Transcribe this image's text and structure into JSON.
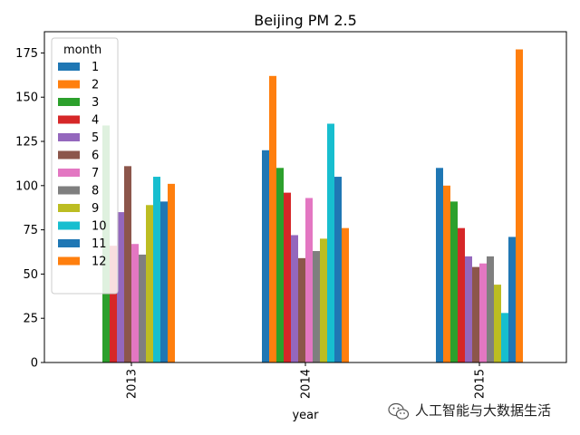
{
  "chart_data": {
    "type": "bar",
    "title": "Beijing PM 2.5",
    "xlabel": "year",
    "ylabel": "",
    "categories": [
      "2013",
      "2014",
      "2015"
    ],
    "ylim": [
      0,
      187
    ],
    "yticks": [
      0,
      25,
      50,
      75,
      100,
      125,
      150,
      175
    ],
    "grid": false,
    "legend": {
      "title": "month",
      "position": "upper-left"
    },
    "series": [
      {
        "name": "1",
        "color": "#1f77b4",
        "values": [
          null,
          120,
          110
        ]
      },
      {
        "name": "2",
        "color": "#ff7f0e",
        "values": [
          null,
          162,
          100
        ]
      },
      {
        "name": "3",
        "color": "#2ca02c",
        "values": [
          134,
          110,
          91
        ]
      },
      {
        "name": "4",
        "color": "#d62728",
        "values": [
          66,
          96,
          76
        ]
      },
      {
        "name": "5",
        "color": "#9467bd",
        "values": [
          85,
          72,
          60
        ]
      },
      {
        "name": "6",
        "color": "#8c564b",
        "values": [
          111,
          59,
          54
        ]
      },
      {
        "name": "7",
        "color": "#e377c2",
        "values": [
          67,
          93,
          56
        ]
      },
      {
        "name": "8",
        "color": "#7f7f7f",
        "values": [
          61,
          63,
          60
        ]
      },
      {
        "name": "9",
        "color": "#bcbd22",
        "values": [
          89,
          70,
          44
        ]
      },
      {
        "name": "10",
        "color": "#17becf",
        "values": [
          105,
          135,
          28
        ]
      },
      {
        "name": "11",
        "color": "#1f77b4",
        "values": [
          91,
          105,
          71
        ]
      },
      {
        "name": "12",
        "color": "#ff7f0e",
        "values": [
          101,
          76,
          177
        ]
      }
    ]
  },
  "watermark": {
    "text": "人工智能与大数据生活",
    "icon": "wechat-icon"
  }
}
